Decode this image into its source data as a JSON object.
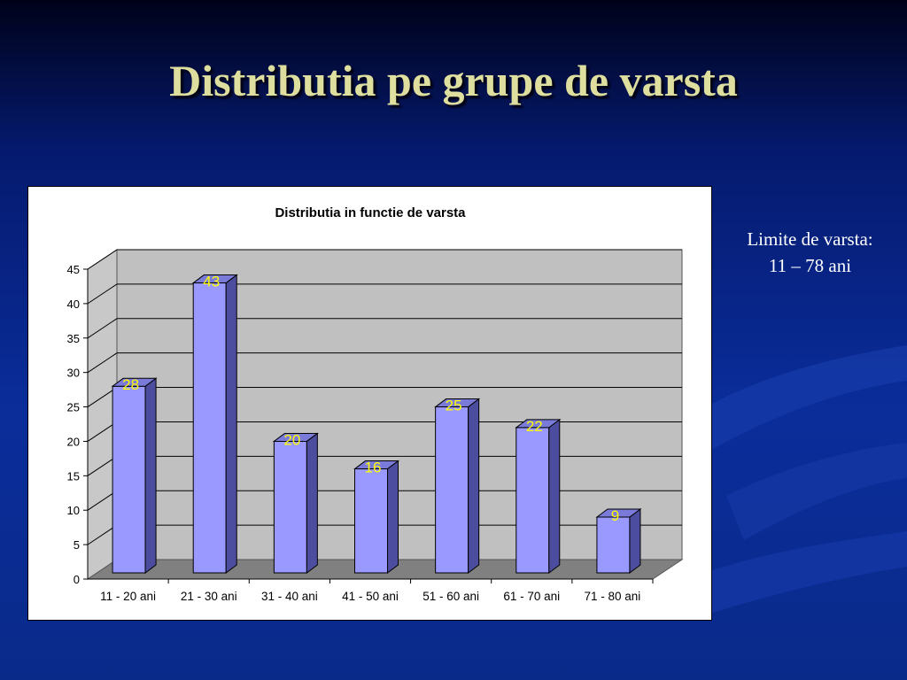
{
  "slide": {
    "title": "Distributia pe grupe de varsta",
    "note_line1": "Limite de varsta:",
    "note_line2": "11 – 78 ani"
  },
  "colors": {
    "title": "#dede9e",
    "bar_front": "#9999ff",
    "bar_side": "#4d4d9f",
    "plot_wall": "#c0c0c0",
    "floor": "#808080",
    "data_label": "#ffff00"
  },
  "chart_data": {
    "type": "bar",
    "title": "Distributia in functie de varsta",
    "categories": [
      "11 - 20 ani",
      "21 - 30 ani",
      "31 - 40 ani",
      "41 - 50 ani",
      "51 - 60 ani",
      "61 - 70 ani",
      "71 - 80 ani"
    ],
    "values": [
      28,
      43,
      20,
      16,
      25,
      22,
      9
    ],
    "data_labels": [
      "28",
      "43",
      "20",
      "16",
      "25",
      "22",
      "9"
    ],
    "y_ticks": [
      "0",
      "5",
      "10",
      "15",
      "20",
      "25",
      "30",
      "35",
      "40",
      "45"
    ],
    "ylim": [
      0,
      45
    ],
    "grid": true,
    "legend": "none",
    "three_d": true
  }
}
